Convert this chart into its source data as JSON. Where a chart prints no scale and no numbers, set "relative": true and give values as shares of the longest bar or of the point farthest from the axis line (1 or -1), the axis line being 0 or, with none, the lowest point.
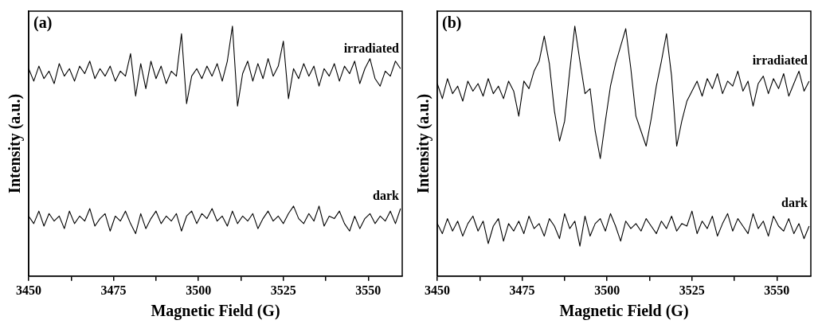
{
  "chart_data": [
    {
      "type": "line",
      "relative": true,
      "annotations": [
        "(a)"
      ],
      "xlabel": "Magnetic Field (G)",
      "ylabel": "Intensity (a.u.)",
      "xlim": [
        3450,
        3560
      ],
      "xticks": [
        3450,
        {
          "value": 3462.5,
          "label": null
        },
        3475,
        {
          "value": 3487.5,
          "label": null
        },
        3500,
        {
          "value": 3512.5,
          "label": null
        },
        3525,
        {
          "value": 3537.5,
          "label": null
        },
        3550
      ],
      "tick_labels": "x",
      "grid": false,
      "legend": false,
      "marker": "none",
      "x": [
        3450,
        3451.5,
        3453,
        3454.5,
        3456,
        3457.5,
        3459,
        3460.5,
        3462,
        3463.5,
        3465,
        3466.5,
        3468,
        3469.5,
        3471,
        3472.5,
        3474,
        3475.5,
        3477,
        3478.5,
        3480,
        3481.5,
        3483,
        3484.5,
        3486,
        3487.5,
        3489,
        3490.5,
        3492,
        3493.5,
        3495,
        3496.5,
        3498,
        3499.5,
        3501,
        3502.5,
        3504,
        3505.5,
        3507,
        3508.5,
        3510,
        3511.5,
        3513,
        3514.5,
        3516,
        3517.5,
        3519,
        3520.5,
        3522,
        3523.5,
        3525,
        3526.5,
        3528,
        3529.5,
        3531,
        3532.5,
        3534,
        3535.5,
        3537,
        3538.5,
        3540,
        3541.5,
        3543,
        3544.5,
        3546,
        3547.5,
        3549,
        3550.5,
        3552,
        3553.5,
        3555,
        3556.5,
        3558,
        3559.5
      ],
      "series": [
        {
          "name": "irradiated",
          "color": "#000000",
          "values": [
            0.83,
            0.78,
            0.84,
            0.79,
            0.82,
            0.77,
            0.85,
            0.8,
            0.83,
            0.78,
            0.84,
            0.81,
            0.86,
            0.79,
            0.83,
            0.8,
            0.84,
            0.78,
            0.82,
            0.8,
            0.89,
            0.72,
            0.85,
            0.75,
            0.86,
            0.79,
            0.84,
            0.77,
            0.82,
            0.8,
            0.97,
            0.69,
            0.8,
            0.83,
            0.79,
            0.84,
            0.8,
            0.85,
            0.78,
            0.86,
            1.0,
            0.68,
            0.81,
            0.86,
            0.78,
            0.85,
            0.79,
            0.87,
            0.8,
            0.84,
            0.94,
            0.71,
            0.83,
            0.79,
            0.85,
            0.8,
            0.84,
            0.76,
            0.83,
            0.8,
            0.85,
            0.78,
            0.84,
            0.81,
            0.86,
            0.77,
            0.83,
            0.87,
            0.79,
            0.76,
            0.82,
            0.8,
            0.86,
            0.83
          ]
        },
        {
          "name": "dark",
          "color": "#000000",
          "values": [
            0.24,
            0.21,
            0.26,
            0.2,
            0.25,
            0.22,
            0.24,
            0.19,
            0.26,
            0.21,
            0.24,
            0.22,
            0.27,
            0.2,
            0.23,
            0.25,
            0.18,
            0.24,
            0.22,
            0.26,
            0.21,
            0.17,
            0.25,
            0.19,
            0.23,
            0.26,
            0.21,
            0.24,
            0.22,
            0.25,
            0.18,
            0.24,
            0.26,
            0.21,
            0.25,
            0.23,
            0.27,
            0.22,
            0.24,
            0.2,
            0.26,
            0.21,
            0.24,
            0.22,
            0.25,
            0.19,
            0.23,
            0.26,
            0.22,
            0.24,
            0.21,
            0.25,
            0.28,
            0.23,
            0.21,
            0.25,
            0.22,
            0.28,
            0.2,
            0.24,
            0.23,
            0.26,
            0.21,
            0.18,
            0.24,
            0.19,
            0.23,
            0.25,
            0.21,
            0.24,
            0.22,
            0.26,
            0.21,
            0.27
          ]
        }
      ]
    },
    {
      "type": "line",
      "relative": true,
      "annotations": [
        "(b)"
      ],
      "xlabel": "Magnetic Field (G)",
      "ylabel": "Intensity (a.u.)",
      "xlim": [
        3450,
        3560
      ],
      "xticks": [
        3450,
        {
          "value": 3462.5,
          "label": null
        },
        3475,
        {
          "value": 3487.5,
          "label": null
        },
        3500,
        {
          "value": 3512.5,
          "label": null
        },
        3525,
        {
          "value": 3537.5,
          "label": null
        },
        3550
      ],
      "tick_labels": "x",
      "grid": false,
      "legend": false,
      "marker": "none",
      "x": [
        3450,
        3451.5,
        3453,
        3454.5,
        3456,
        3457.5,
        3459,
        3460.5,
        3462,
        3463.5,
        3465,
        3466.5,
        3468,
        3469.5,
        3471,
        3472.5,
        3474,
        3475.5,
        3477,
        3478.5,
        3480,
        3481.5,
        3483,
        3484.5,
        3486,
        3487.5,
        3489,
        3490.5,
        3492,
        3493.5,
        3495,
        3496.5,
        3498,
        3499.5,
        3501,
        3502.5,
        3504,
        3505.5,
        3507,
        3508.5,
        3510,
        3511.5,
        3513,
        3514.5,
        3516,
        3517.5,
        3519,
        3520.5,
        3522,
        3523.5,
        3525,
        3526.5,
        3528,
        3529.5,
        3531,
        3532.5,
        3534,
        3535.5,
        3537,
        3538.5,
        3540,
        3541.5,
        3543,
        3544.5,
        3546,
        3547.5,
        3549,
        3550.5,
        3552,
        3553.5,
        3555,
        3556.5,
        3558,
        3559.5
      ],
      "series": [
        {
          "name": "irradiated",
          "color": "#000000",
          "values": [
            0.77,
            0.71,
            0.79,
            0.73,
            0.76,
            0.7,
            0.78,
            0.74,
            0.77,
            0.72,
            0.79,
            0.73,
            0.76,
            0.71,
            0.78,
            0.74,
            0.64,
            0.78,
            0.75,
            0.82,
            0.86,
            0.96,
            0.85,
            0.66,
            0.54,
            0.62,
            0.82,
            1.0,
            0.86,
            0.73,
            0.75,
            0.58,
            0.47,
            0.62,
            0.76,
            0.85,
            0.92,
            0.99,
            0.83,
            0.64,
            0.58,
            0.52,
            0.63,
            0.76,
            0.86,
            0.97,
            0.8,
            0.52,
            0.62,
            0.7,
            0.74,
            0.78,
            0.72,
            0.79,
            0.75,
            0.81,
            0.73,
            0.78,
            0.76,
            0.82,
            0.74,
            0.78,
            0.68,
            0.77,
            0.8,
            0.73,
            0.79,
            0.75,
            0.81,
            0.72,
            0.77,
            0.82,
            0.74,
            0.78
          ]
        },
        {
          "name": "dark",
          "color": "#000000",
          "values": [
            0.21,
            0.17,
            0.23,
            0.18,
            0.22,
            0.16,
            0.21,
            0.24,
            0.18,
            0.22,
            0.13,
            0.2,
            0.23,
            0.14,
            0.21,
            0.18,
            0.22,
            0.17,
            0.24,
            0.19,
            0.21,
            0.16,
            0.23,
            0.2,
            0.15,
            0.25,
            0.19,
            0.22,
            0.12,
            0.24,
            0.16,
            0.21,
            0.23,
            0.18,
            0.25,
            0.2,
            0.14,
            0.22,
            0.19,
            0.21,
            0.18,
            0.23,
            0.2,
            0.17,
            0.22,
            0.19,
            0.24,
            0.18,
            0.21,
            0.2,
            0.26,
            0.17,
            0.22,
            0.19,
            0.24,
            0.16,
            0.21,
            0.25,
            0.18,
            0.23,
            0.2,
            0.17,
            0.25,
            0.19,
            0.22,
            0.16,
            0.24,
            0.2,
            0.18,
            0.23,
            0.17,
            0.21,
            0.15,
            0.2
          ]
        }
      ]
    }
  ]
}
